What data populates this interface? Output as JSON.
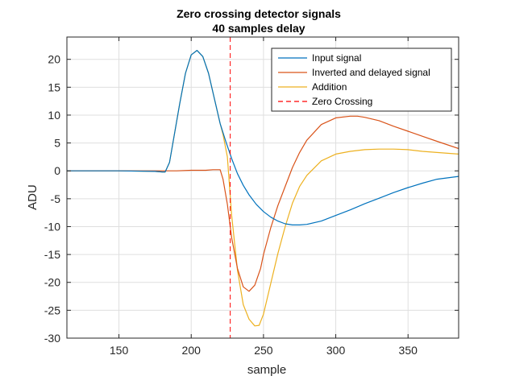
{
  "chart_data": {
    "type": "line",
    "title": "Zero crossing detector signals",
    "subtitle": "40 samples delay",
    "xlabel": "sample",
    "ylabel": "ADU",
    "xlim": [
      114,
      385
    ],
    "ylim": [
      -30,
      24
    ],
    "xticks": [
      150,
      200,
      250,
      300,
      350
    ],
    "yticks": [
      -30,
      -25,
      -20,
      -15,
      -10,
      -5,
      0,
      5,
      10,
      15,
      20
    ],
    "grid": true,
    "legend_position": "top-right",
    "series": [
      {
        "name": "Input signal",
        "color": "#0072BD",
        "x": [
          114,
          150,
          175,
          180,
          182,
          185,
          188,
          192,
          196,
          200,
          204,
          208,
          212,
          216,
          220,
          224,
          228,
          232,
          236,
          240,
          245,
          250,
          255,
          260,
          265,
          270,
          275,
          280,
          290,
          300,
          310,
          320,
          330,
          340,
          350,
          360,
          370,
          385
        ],
        "y": [
          0,
          0,
          -0.1,
          -0.2,
          -0.2,
          1.5,
          6,
          12,
          17.5,
          20.8,
          21.6,
          20.5,
          17.5,
          13,
          8.5,
          5.2,
          2.2,
          -0.5,
          -2.6,
          -4.3,
          -6,
          -7.3,
          -8.3,
          -9.0,
          -9.5,
          -9.7,
          -9.7,
          -9.6,
          -9.0,
          -8.0,
          -7.0,
          -5.9,
          -4.9,
          -3.9,
          -3.0,
          -2.2,
          -1.5,
          -1.0
        ]
      },
      {
        "name": "Inverted and delayed signal",
        "color": "#D95319",
        "x": [
          114,
          150,
          190,
          200,
          210,
          215,
          220,
          222,
          225,
          228,
          232,
          236,
          240,
          244,
          248,
          250,
          255,
          260,
          265,
          270,
          275,
          280,
          290,
          300,
          310,
          315,
          320,
          330,
          340,
          350,
          360,
          370,
          385
        ],
        "y": [
          0,
          0,
          0,
          0.1,
          0.1,
          0.2,
          0.2,
          -1.5,
          -6,
          -12,
          -17.5,
          -20.8,
          -21.6,
          -20.5,
          -17.5,
          -15,
          -10.2,
          -6.2,
          -2.8,
          0.6,
          3.3,
          5.5,
          8.3,
          9.5,
          9.8,
          9.8,
          9.6,
          9.0,
          8.0,
          7.1,
          6.2,
          5.3,
          4.0
        ]
      },
      {
        "name": "Addition",
        "color": "#EDB120",
        "x": [
          114,
          150,
          175,
          180,
          182,
          185,
          188,
          192,
          196,
          200,
          204,
          208,
          212,
          216,
          220,
          222,
          225,
          228,
          232,
          236,
          240,
          244,
          247,
          250,
          255,
          260,
          265,
          270,
          275,
          280,
          290,
          300,
          310,
          320,
          330,
          340,
          350,
          360,
          370,
          385
        ],
        "y": [
          0,
          0,
          -0.1,
          -0.2,
          -0.2,
          1.5,
          6,
          12,
          17.5,
          20.8,
          21.6,
          20.5,
          17.5,
          13,
          8.5,
          6.5,
          2.5,
          -8,
          -17.8,
          -24,
          -26.6,
          -27.8,
          -27.7,
          -25.7,
          -20.2,
          -14.8,
          -10,
          -5.8,
          -2.8,
          -0.8,
          1.8,
          3.0,
          3.5,
          3.8,
          3.9,
          3.9,
          3.8,
          3.5,
          3.3,
          3.0
        ]
      },
      {
        "name": "Zero Crossing",
        "color": "#FF0000",
        "dashed": true,
        "vertical_x": 227
      }
    ]
  }
}
